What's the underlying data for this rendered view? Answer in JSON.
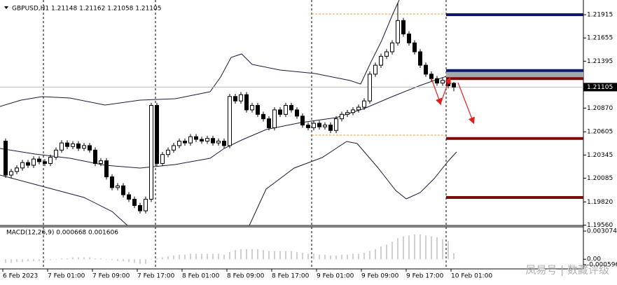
{
  "chart_data": {
    "type": "candlestick",
    "title": "GBPUSD,H1  1.21148 1.21162 1.21058 1.21105",
    "categories": [
      "6 Feb 2023",
      null,
      null,
      null,
      null,
      null,
      null,
      null,
      "7 Feb 01:00",
      null,
      null,
      null,
      null,
      null,
      null,
      null,
      "7 Feb 09:00",
      null,
      null,
      null,
      null,
      null,
      null,
      null,
      "7 Feb 17:00",
      null,
      null,
      null,
      null,
      null,
      null,
      null,
      "8 Feb 01:00",
      null,
      null,
      null,
      null,
      null,
      null,
      null,
      "8 Feb 09:00",
      null,
      null,
      null,
      null,
      null,
      null,
      null,
      "8 Feb 17:00",
      null,
      null,
      null,
      null,
      null,
      null,
      null,
      "9 Feb 01:00",
      null,
      null,
      null,
      null,
      null,
      null,
      null,
      "9 Feb 09:00",
      null,
      null,
      null,
      null,
      null,
      null,
      null,
      "9 Feb 17:00",
      null,
      null,
      null,
      null,
      null,
      null,
      null,
      "10 Feb 01:00"
    ],
    "open": [
      1.205,
      1.2012,
      1.2016,
      1.202,
      1.2026,
      1.2023,
      1.203,
      1.2027,
      1.2025,
      1.2032,
      1.204,
      1.2048,
      1.2044,
      1.2047,
      1.2042,
      1.2045,
      1.204,
      1.2025,
      1.2028,
      1.201,
      1.1998,
      1.2,
      1.199,
      1.1985,
      1.1978,
      1.1972,
      1.1985,
      1.209,
      1.2025,
      1.2035,
      1.204,
      1.2045,
      1.205,
      1.2048,
      1.2055,
      1.2052,
      1.205,
      1.2053,
      1.2048,
      1.205,
      1.2045,
      1.21,
      1.2095,
      1.2102,
      1.2085,
      1.209,
      1.208,
      1.2075,
      1.2065,
      1.2085,
      1.208,
      1.209,
      1.2085,
      1.2078,
      1.2068,
      1.2065,
      1.207,
      1.2066,
      1.2068,
      1.2062,
      1.2075,
      1.208,
      1.2082,
      1.2085,
      1.2088,
      1.2095,
      1.2125,
      1.2135,
      1.2145,
      1.215,
      1.216,
      1.2185,
      1.217,
      1.216,
      1.215,
      1.2135,
      1.2125,
      1.212,
      1.2115,
      1.2118,
      1.21148
    ],
    "high": [
      1.2053,
      1.2019,
      1.2023,
      1.2029,
      1.2029,
      1.2033,
      1.2033,
      1.203,
      1.2035,
      1.2043,
      1.2051,
      1.2051,
      1.205,
      1.205,
      1.2048,
      1.2048,
      1.2043,
      1.2031,
      1.2031,
      1.2013,
      1.2003,
      1.2003,
      1.1993,
      1.1988,
      1.1981,
      1.1988,
      1.2093,
      1.2093,
      1.2038,
      1.2043,
      1.2048,
      1.2053,
      1.2053,
      1.2058,
      1.2058,
      1.2055,
      1.2056,
      1.2056,
      1.2053,
      1.2053,
      1.2103,
      1.2103,
      1.2105,
      1.2105,
      1.2093,
      1.2093,
      1.2083,
      1.2078,
      1.2088,
      1.2088,
      1.2093,
      1.2093,
      1.2088,
      1.2081,
      1.2071,
      1.2073,
      1.2073,
      1.2071,
      1.2071,
      1.2078,
      1.2083,
      1.2085,
      1.2088,
      1.2091,
      1.2098,
      1.2128,
      1.2138,
      1.2148,
      1.2153,
      1.2163,
      1.2205,
      1.2188,
      1.2173,
      1.2163,
      1.2153,
      1.2138,
      1.2128,
      1.2123,
      1.2121,
      1.2121,
      1.21162
    ],
    "low": [
      1.2009,
      1.2009,
      1.2013,
      1.2017,
      1.202,
      1.202,
      1.2024,
      1.2022,
      1.2022,
      1.2029,
      1.2037,
      1.2041,
      1.2041,
      1.2039,
      1.2039,
      1.2037,
      1.2022,
      1.2022,
      1.2007,
      1.1995,
      1.1995,
      1.1987,
      1.1982,
      1.1975,
      1.1969,
      1.1969,
      1.1982,
      1.2022,
      1.2022,
      1.2032,
      1.2037,
      1.2042,
      1.2045,
      1.2045,
      1.2049,
      1.2047,
      1.2047,
      1.2045,
      1.2045,
      1.2042,
      1.2042,
      1.2092,
      1.2092,
      1.2082,
      1.2082,
      1.2077,
      1.2072,
      1.2062,
      1.2062,
      1.2077,
      1.2077,
      1.2082,
      1.2075,
      1.2065,
      1.2062,
      1.2062,
      1.2063,
      1.2063,
      1.2059,
      1.2059,
      1.2072,
      1.2077,
      1.2079,
      1.2082,
      1.2085,
      1.2092,
      1.2122,
      1.2132,
      1.2142,
      1.2147,
      1.2157,
      1.2167,
      1.2157,
      1.2147,
      1.2132,
      1.2122,
      1.2117,
      1.2112,
      1.2112,
      1.2109,
      1.21058
    ],
    "close": [
      1.2012,
      1.2016,
      1.202,
      1.2026,
      1.2023,
      1.203,
      1.2027,
      1.2025,
      1.2032,
      1.204,
      1.2048,
      1.2044,
      1.2047,
      1.2042,
      1.2045,
      1.204,
      1.2025,
      1.2028,
      1.201,
      1.1998,
      1.2,
      1.199,
      1.1985,
      1.1978,
      1.1972,
      1.1985,
      1.209,
      1.2025,
      1.2035,
      1.204,
      1.2045,
      1.205,
      1.2048,
      1.2055,
      1.2052,
      1.205,
      1.2053,
      1.2048,
      1.205,
      1.2045,
      1.21,
      1.2095,
      1.2102,
      1.2085,
      1.209,
      1.208,
      1.2075,
      1.2065,
      1.2085,
      1.208,
      1.209,
      1.2085,
      1.2078,
      1.2068,
      1.2065,
      1.207,
      1.2066,
      1.2068,
      1.2062,
      1.2075,
      1.208,
      1.2082,
      1.2085,
      1.2088,
      1.2095,
      1.2125,
      1.2135,
      1.2145,
      1.215,
      1.216,
      1.2185,
      1.217,
      1.216,
      1.215,
      1.2135,
      1.2125,
      1.212,
      1.2115,
      1.2118,
      1.2112,
      1.21105
    ],
    "ylim": [
      1.19556,
      1.2208
    ],
    "yticks": [
      1.21915,
      1.21655,
      1.21395,
      {
        "value": 1.2087,
        "label": "1.20870"
      },
      1.20605,
      1.20345,
      1.20085,
      {
        "value": 1.1982,
        "label": "1.19820"
      },
      {
        "value": 1.1956,
        "label": "1.19560"
      }
    ],
    "current": 1.21105,
    "levels": [
      {
        "value": 1.21915,
        "color": "#0d1a6b"
      },
      {
        "value": 1.2129,
        "color": "#0d1a6b"
      },
      {
        "value": 1.212,
        "color": "#7a0c0c"
      },
      {
        "value": 1.2053,
        "color": "#7a0c0c"
      },
      {
        "value": 1.1987,
        "color": "#7a0c0c"
      }
    ],
    "macd": {
      "title": "MACD(12,26,9) 0.000668 0.001606",
      "values": [
        -0.0004,
        -0.0004,
        -0.0003,
        -0.0003,
        -0.0002,
        -0.0002,
        -0.0002,
        -0.0001,
        -0.0001,
        0.0,
        0.0001,
        0.0001,
        0.0002,
        0.0002,
        0.0002,
        0.0002,
        0.0001,
        0.0001,
        0.0,
        -0.0001,
        -0.0002,
        -0.0002,
        -0.0003,
        -0.0004,
        -0.0005,
        -0.0005,
        0.0,
        0.0001,
        0.0002,
        0.0003,
        0.0004,
        0.0005,
        0.0005,
        0.0006,
        0.0006,
        0.0006,
        0.0006,
        0.0006,
        0.0006,
        0.0005,
        0.0008,
        0.001,
        0.0011,
        0.0011,
        0.0011,
        0.0011,
        0.001,
        0.0009,
        0.0009,
        0.0009,
        0.0009,
        0.0009,
        0.0008,
        0.0007,
        0.0006,
        0.0006,
        0.0005,
        0.0005,
        0.0004,
        0.0004,
        0.0005,
        0.0005,
        0.0006,
        0.0006,
        0.0007,
        0.0009,
        0.0011,
        0.0014,
        0.0016,
        0.0019,
        0.0023,
        0.0025,
        0.0026,
        0.0027,
        0.0027,
        0.0026,
        0.0025,
        0.0024,
        0.0022,
        0.002,
        0.000668
      ],
      "color": "#a0a0a0",
      "ylim": [
        -0.000596,
        0.003074
      ],
      "yticks": [
        0.003074,
        {
          "value": 0,
          "label": "0.00"
        },
        -0.000596
      ]
    },
    "watermark": "凤易号 | 数藏评级"
  }
}
